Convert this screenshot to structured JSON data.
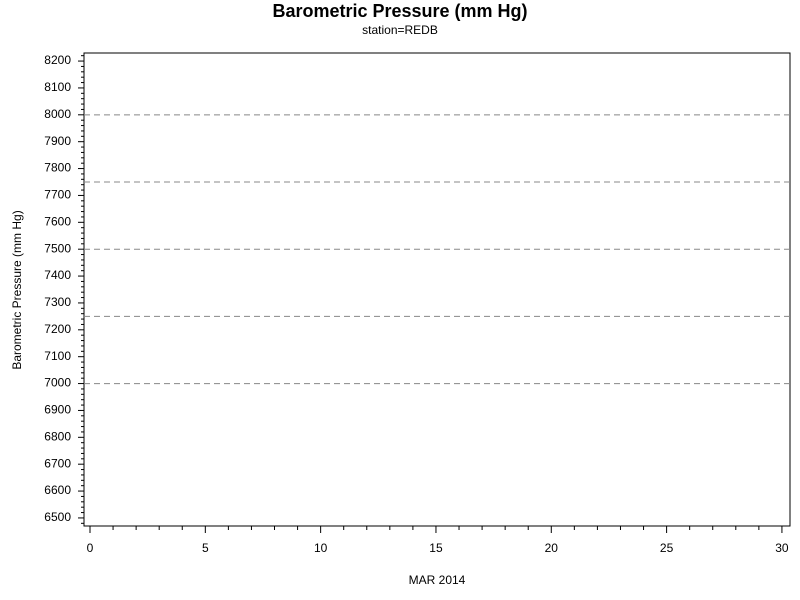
{
  "chart_data": {
    "type": "line",
    "title": "Barometric Pressure (mm Hg)",
    "subtitle": "station=REDB",
    "xlabel": "MAR 2014",
    "ylabel": "Barometric Pressure (mm Hg)",
    "series": [],
    "xlim": [
      -0.26,
      30.35
    ],
    "xticks": [
      0,
      5,
      10,
      15,
      20,
      25,
      30
    ],
    "x_minor_ticks": [
      1,
      2,
      3,
      4,
      6,
      7,
      8,
      9,
      11,
      12,
      13,
      14,
      16,
      17,
      18,
      19,
      21,
      22,
      23,
      24,
      26,
      27,
      28,
      29
    ],
    "ylim": [
      6470,
      8230
    ],
    "yticks": [
      6500,
      6600,
      6700,
      6800,
      6900,
      7000,
      7100,
      7200,
      7300,
      7400,
      7500,
      7600,
      7700,
      7800,
      7900,
      8000,
      8100,
      8200
    ],
    "y_minor_ticks": [
      6480,
      6520,
      6540,
      6560,
      6580,
      6620,
      6640,
      6660,
      6680,
      6720,
      6740,
      6760,
      6780,
      6820,
      6840,
      6860,
      6880,
      6920,
      6940,
      6960,
      6980,
      7020,
      7040,
      7060,
      7080,
      7120,
      7140,
      7160,
      7180,
      7220,
      7240,
      7260,
      7280,
      7320,
      7340,
      7360,
      7380,
      7420,
      7440,
      7460,
      7480,
      7520,
      7540,
      7560,
      7580,
      7620,
      7640,
      7660,
      7680,
      7720,
      7740,
      7760,
      7780,
      7820,
      7840,
      7860,
      7880,
      7920,
      7940,
      7960,
      7980,
      8020,
      8040,
      8060,
      8080,
      8120,
      8140,
      8160,
      8180,
      8220
    ],
    "reference_lines": [
      7000,
      7250,
      7500,
      7750,
      8000
    ],
    "reference_line_color": "#888888"
  }
}
